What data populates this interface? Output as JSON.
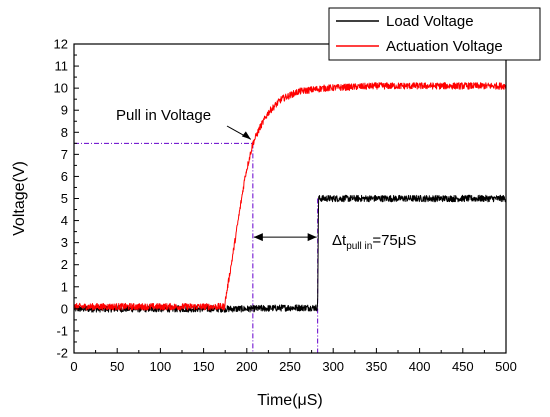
{
  "chart_data": {
    "type": "line",
    "xlabel": "Time(μS)",
    "ylabel": "Voltage(V)",
    "xlim": [
      0,
      500
    ],
    "ylim": [
      -2,
      12
    ],
    "x_ticks": [
      0,
      50,
      100,
      150,
      200,
      250,
      300,
      350,
      400,
      450,
      500
    ],
    "y_ticks": [
      -2,
      -1,
      0,
      1,
      2,
      3,
      4,
      5,
      6,
      7,
      8,
      9,
      10,
      11,
      12
    ],
    "grid": false,
    "legend_position": "top-right",
    "series": [
      {
        "name": "Load Voltage",
        "color": "#000000",
        "points": [
          [
            0,
            0.0
          ],
          [
            175,
            0.0
          ],
          [
            200,
            0.0
          ],
          [
            250,
            0.05
          ],
          [
            282,
            0.05
          ],
          [
            283,
            5.0
          ],
          [
            300,
            5.0
          ],
          [
            400,
            5.0
          ],
          [
            500,
            5.0
          ]
        ],
        "noise": 0.15
      },
      {
        "name": "Actuation Voltage",
        "color": "#ff0000",
        "points": [
          [
            0,
            0.1
          ],
          [
            150,
            0.1
          ],
          [
            174,
            0.1
          ],
          [
            182,
            2.0
          ],
          [
            190,
            4.0
          ],
          [
            198,
            6.0
          ],
          [
            207,
            7.5
          ],
          [
            215,
            8.2
          ],
          [
            225,
            8.9
          ],
          [
            240,
            9.5
          ],
          [
            260,
            9.85
          ],
          [
            290,
            10.0
          ],
          [
            350,
            10.1
          ],
          [
            400,
            10.1
          ],
          [
            450,
            10.1
          ],
          [
            500,
            10.1
          ]
        ],
        "noise": 0.15
      }
    ],
    "annotations": {
      "pull_in_label": "Pull in Voltage",
      "pull_in_point": [
        207,
        7.5
      ],
      "pull_in_color": "#6600cc",
      "delta_prefix": "Δt",
      "delta_subscript": "pull in",
      "delta_suffix": "=75μS",
      "delta_from_x": 207,
      "delta_to_x": 282,
      "delta_y": 3.25,
      "load_step_x": 282,
      "load_step_y": 5.0
    }
  }
}
